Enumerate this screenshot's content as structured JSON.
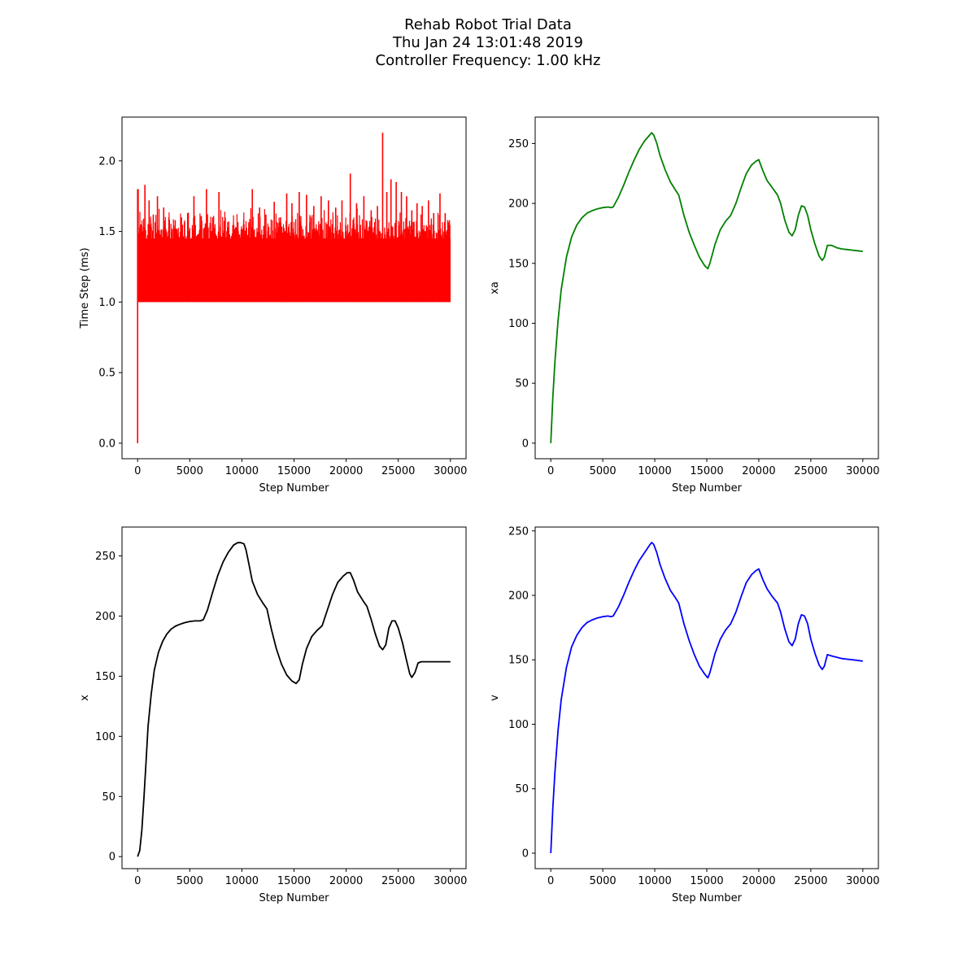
{
  "figure": {
    "title_lines": [
      "Rehab Robot Trial Data",
      "Thu Jan 24 13:01:48 2019",
      "Controller Frequency: 1.00 kHz"
    ]
  },
  "chart_data": [
    {
      "type": "line",
      "xlabel": "Step Number",
      "ylabel": "Time Step (ms)",
      "color": "#ff0000",
      "xlim": [
        -1500,
        31500
      ],
      "ylim": [
        -0.11,
        2.31
      ],
      "xticks": [
        0,
        5000,
        10000,
        15000,
        20000,
        25000,
        30000
      ],
      "yticks": [
        0.0,
        0.5,
        1.0,
        1.5,
        2.0
      ],
      "ytick_labels": [
        "0.0",
        "0.5",
        "1.0",
        "1.5",
        "2.0"
      ],
      "baseline": 1.0,
      "band_upper": 1.45,
      "start_point": {
        "x": 0,
        "y": 0.0
      },
      "spikes": [
        {
          "x": 50,
          "y": 1.8
        },
        {
          "x": 300,
          "y": 1.55
        },
        {
          "x": 700,
          "y": 1.83
        },
        {
          "x": 1100,
          "y": 1.72
        },
        {
          "x": 1500,
          "y": 1.62
        },
        {
          "x": 1900,
          "y": 1.75
        },
        {
          "x": 2500,
          "y": 1.67
        },
        {
          "x": 3000,
          "y": 1.6
        },
        {
          "x": 3600,
          "y": 1.58
        },
        {
          "x": 4200,
          "y": 1.6
        },
        {
          "x": 4800,
          "y": 1.63
        },
        {
          "x": 5400,
          "y": 1.75
        },
        {
          "x": 6100,
          "y": 1.61
        },
        {
          "x": 6600,
          "y": 1.8
        },
        {
          "x": 7200,
          "y": 1.6
        },
        {
          "x": 7800,
          "y": 1.78
        },
        {
          "x": 8400,
          "y": 1.6
        },
        {
          "x": 8700,
          "y": 1.53
        },
        {
          "x": 9400,
          "y": 1.53
        },
        {
          "x": 10200,
          "y": 1.55
        },
        {
          "x": 11000,
          "y": 1.8
        },
        {
          "x": 11700,
          "y": 1.67
        },
        {
          "x": 12300,
          "y": 1.62
        },
        {
          "x": 13100,
          "y": 1.71
        },
        {
          "x": 13700,
          "y": 1.6
        },
        {
          "x": 14100,
          "y": 1.3
        },
        {
          "x": 14300,
          "y": 1.77
        },
        {
          "x": 14800,
          "y": 1.7
        },
        {
          "x": 15500,
          "y": 1.78
        },
        {
          "x": 16200,
          "y": 1.76
        },
        {
          "x": 16900,
          "y": 1.68
        },
        {
          "x": 17600,
          "y": 1.75
        },
        {
          "x": 18300,
          "y": 1.72
        },
        {
          "x": 19000,
          "y": 1.67
        },
        {
          "x": 19600,
          "y": 1.72
        },
        {
          "x": 20400,
          "y": 1.91
        },
        {
          "x": 21000,
          "y": 1.7
        },
        {
          "x": 21700,
          "y": 1.75
        },
        {
          "x": 22400,
          "y": 1.65
        },
        {
          "x": 23000,
          "y": 1.68
        },
        {
          "x": 23500,
          "y": 2.2
        },
        {
          "x": 23900,
          "y": 1.78
        },
        {
          "x": 24300,
          "y": 1.87
        },
        {
          "x": 24800,
          "y": 1.85
        },
        {
          "x": 25300,
          "y": 1.78
        },
        {
          "x": 25800,
          "y": 1.75
        },
        {
          "x": 26300,
          "y": 1.65
        },
        {
          "x": 26800,
          "y": 1.7
        },
        {
          "x": 27300,
          "y": 1.68
        },
        {
          "x": 27900,
          "y": 1.72
        },
        {
          "x": 28400,
          "y": 1.63
        },
        {
          "x": 29000,
          "y": 1.77
        },
        {
          "x": 29500,
          "y": 1.63
        },
        {
          "x": 29900,
          "y": 1.58
        }
      ]
    },
    {
      "type": "line",
      "xlabel": "Step Number",
      "ylabel": "xa",
      "color": "#008000",
      "xlim": [
        -1500,
        31500
      ],
      "ylim": [
        -13,
        272
      ],
      "xticks": [
        0,
        5000,
        10000,
        15000,
        20000,
        25000,
        30000
      ],
      "yticks": [
        0,
        50,
        100,
        150,
        200,
        250
      ],
      "ytick_labels": [
        "0",
        "50",
        "100",
        "150",
        "200",
        "250"
      ],
      "x": [
        0,
        200,
        400,
        700,
        1000,
        1500,
        2000,
        2500,
        3000,
        3500,
        4000,
        4500,
        5000,
        5500,
        5800,
        6000,
        6500,
        7000,
        7500,
        8000,
        8500,
        9000,
        9500,
        9700,
        9900,
        10200,
        10500,
        11000,
        11500,
        12000,
        12300,
        12800,
        13300,
        13800,
        14300,
        14800,
        15100,
        15300,
        15800,
        16300,
        16800,
        17300,
        17800,
        18300,
        18800,
        19300,
        19700,
        20000,
        20400,
        20800,
        21300,
        21800,
        22100,
        22500,
        22900,
        23200,
        23500,
        23800,
        24100,
        24400,
        24700,
        25000,
        25400,
        25800,
        26100,
        26300,
        26600,
        27000,
        27500,
        28000,
        28500,
        29000,
        29500,
        30000
      ],
      "y": [
        0,
        38,
        68,
        102,
        128,
        155,
        172,
        182,
        188,
        192,
        194,
        195.5,
        196.5,
        197,
        196.5,
        197,
        205,
        215,
        226,
        236,
        245,
        252,
        257,
        259,
        257,
        250,
        240,
        228,
        218,
        211,
        207,
        190,
        176,
        165,
        155,
        148,
        145.5,
        150,
        166,
        178,
        185,
        190,
        200,
        213,
        225,
        232,
        235,
        236.5,
        227,
        219,
        213,
        207,
        200,
        186,
        176,
        173,
        178,
        190,
        198,
        197,
        190,
        178,
        166,
        156,
        152.5,
        155,
        165,
        165,
        163,
        162,
        161.5,
        161,
        160.5,
        160
      ]
    },
    {
      "type": "line",
      "xlabel": "Step Number",
      "ylabel": "x",
      "color": "#000000",
      "xlim": [
        -1500,
        31500
      ],
      "ylim": [
        -10,
        274
      ],
      "xticks": [
        0,
        5000,
        10000,
        15000,
        20000,
        25000,
        30000
      ],
      "yticks": [
        0,
        50,
        100,
        150,
        200,
        250
      ],
      "ytick_labels": [
        "0",
        "50",
        "100",
        "150",
        "200",
        "250"
      ],
      "x": [
        0,
        200,
        400,
        600,
        800,
        1000,
        1300,
        1600,
        2000,
        2400,
        2800,
        3200,
        3600,
        4000,
        4500,
        5000,
        5500,
        5800,
        6000,
        6300,
        6700,
        7200,
        7700,
        8200,
        8700,
        9200,
        9600,
        9900,
        10200,
        10400,
        10700,
        11000,
        11500,
        12000,
        12400,
        12800,
        13300,
        13800,
        14300,
        14800,
        15200,
        15500,
        15800,
        16200,
        16700,
        17200,
        17700,
        18200,
        18700,
        19200,
        19700,
        20100,
        20400,
        20700,
        21100,
        21600,
        22000,
        22400,
        22800,
        23200,
        23500,
        23800,
        24100,
        24400,
        24700,
        25000,
        25400,
        25800,
        26100,
        26300,
        26600,
        26900,
        27200,
        27500,
        28000,
        28500,
        29000,
        29500,
        30000
      ],
      "y": [
        0,
        5,
        22,
        48,
        78,
        108,
        135,
        155,
        170,
        179,
        185,
        189,
        191.5,
        193,
        194.5,
        195.5,
        196,
        196,
        196,
        197,
        205,
        220,
        234,
        245,
        253,
        259,
        261,
        261,
        260,
        255,
        242,
        229,
        218,
        211,
        206,
        190,
        173,
        160,
        151,
        146,
        144,
        147,
        160,
        173,
        183,
        188,
        192,
        205,
        218,
        228,
        233,
        236,
        236,
        230,
        220,
        213,
        208,
        197,
        185,
        175,
        172,
        176,
        190,
        196,
        196,
        190,
        178,
        163,
        152,
        149,
        153,
        161,
        162,
        162,
        162,
        162,
        162,
        162,
        162
      ]
    },
    {
      "type": "line",
      "xlabel": "Step Number",
      "ylabel": "v",
      "color": "#0000ff",
      "xlim": [
        -1500,
        31500
      ],
      "ylim": [
        -12,
        253
      ],
      "xticks": [
        0,
        5000,
        10000,
        15000,
        20000,
        25000,
        30000
      ],
      "yticks": [
        0,
        50,
        100,
        150,
        200,
        250
      ],
      "ytick_labels": [
        "0",
        "50",
        "100",
        "150",
        "200",
        "250"
      ],
      "x": [
        0,
        200,
        400,
        700,
        1000,
        1500,
        2000,
        2500,
        3000,
        3500,
        4000,
        4500,
        5000,
        5500,
        5800,
        6000,
        6500,
        7000,
        7500,
        8000,
        8500,
        9000,
        9500,
        9700,
        9900,
        10200,
        10500,
        11000,
        11500,
        12000,
        12300,
        12800,
        13300,
        13800,
        14300,
        14800,
        15100,
        15300,
        15800,
        16300,
        16800,
        17300,
        17800,
        18300,
        18800,
        19300,
        19700,
        20000,
        20400,
        20800,
        21300,
        21800,
        22100,
        22500,
        22900,
        23200,
        23500,
        23800,
        24100,
        24400,
        24700,
        25000,
        25400,
        25800,
        26100,
        26300,
        26600,
        27000,
        27500,
        28000,
        28500,
        29000,
        29500,
        30000
      ],
      "y": [
        0,
        35,
        63,
        95,
        119,
        144,
        160,
        169,
        175,
        179,
        181,
        182.5,
        183.5,
        184,
        183.5,
        184,
        191,
        200,
        210,
        219,
        227,
        233,
        239,
        241,
        239.5,
        233,
        224,
        213,
        204,
        198,
        194,
        178,
        165,
        154,
        145,
        139,
        136,
        140,
        155,
        166,
        173,
        178,
        187,
        199,
        210,
        216,
        219,
        220.5,
        212,
        205,
        199,
        194,
        187,
        174,
        164,
        161,
        166,
        178,
        185,
        184,
        178,
        166,
        155,
        146,
        142.5,
        145,
        154,
        153,
        152,
        151,
        150.5,
        150,
        149.5,
        149
      ]
    }
  ]
}
